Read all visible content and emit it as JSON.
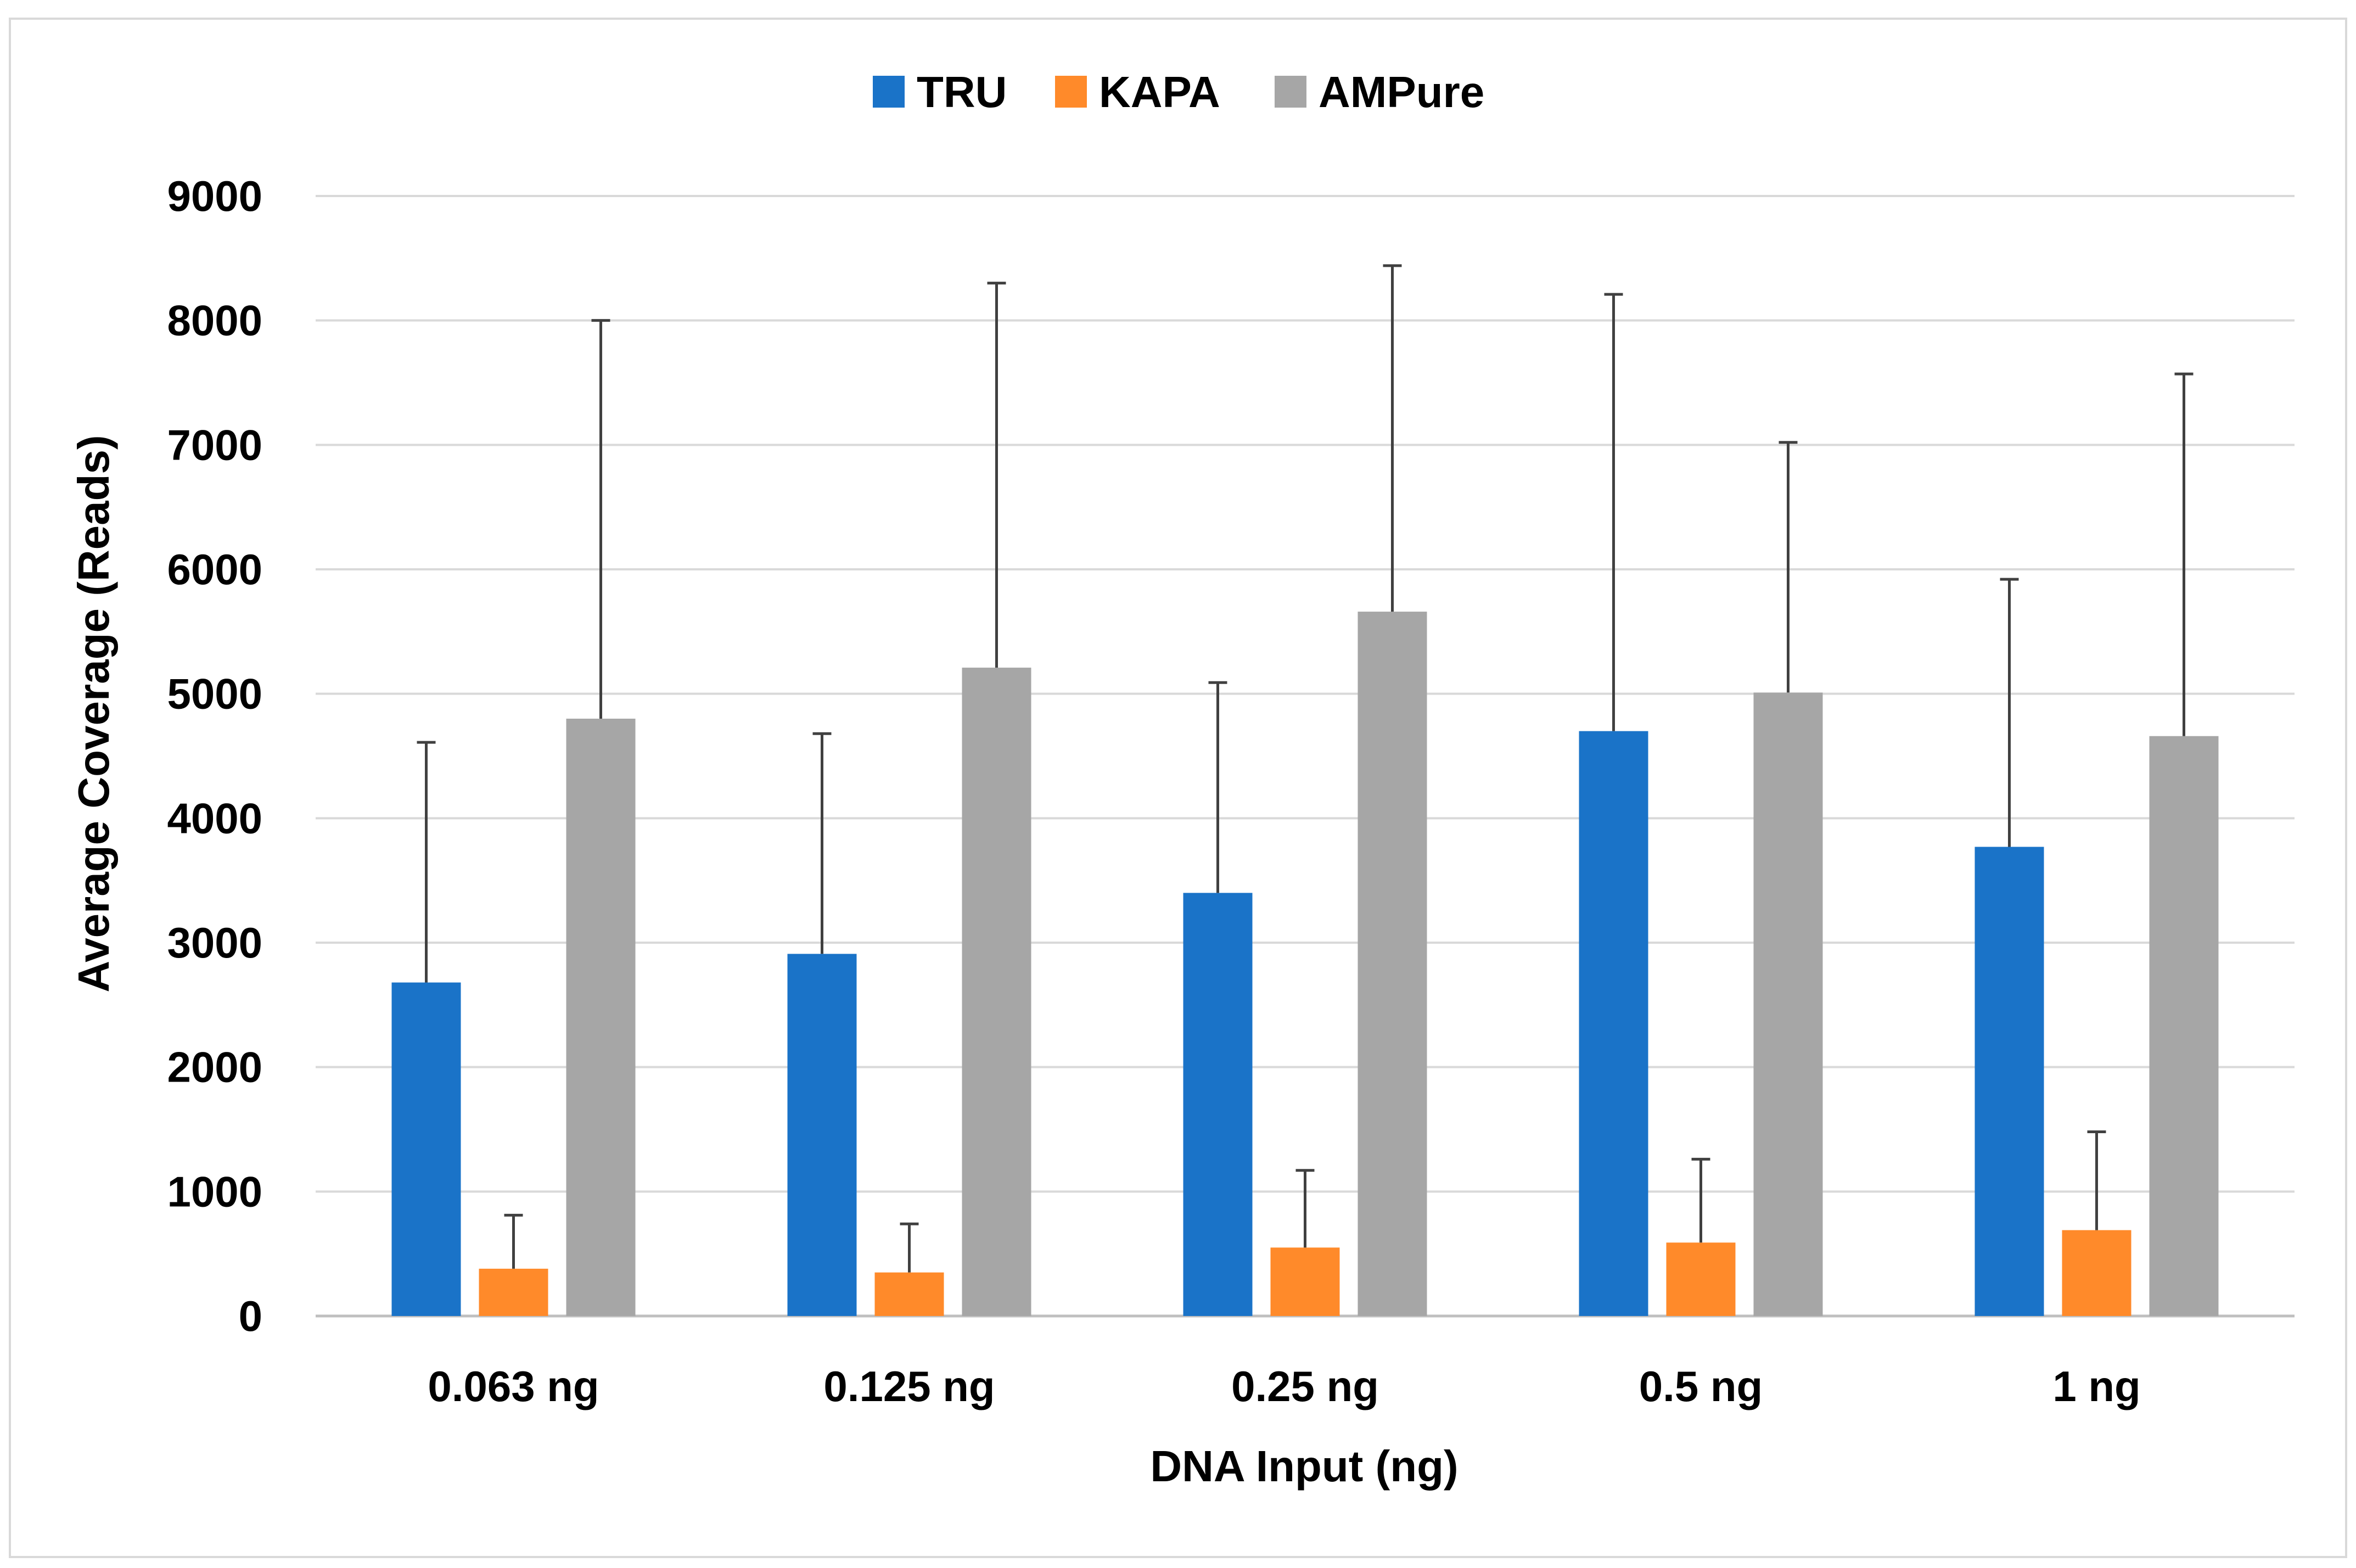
{
  "chart_data": {
    "type": "bar",
    "title": "",
    "xlabel": "DNA Input (ng)",
    "ylabel": "Average Coverage (Reads)",
    "ylim": [
      0,
      9000
    ],
    "yticks": [
      0,
      1000,
      2000,
      3000,
      4000,
      5000,
      6000,
      7000,
      8000,
      9000
    ],
    "grid": true,
    "legend_position": "top-center",
    "categories": [
      "0.063 ng",
      "0.125 ng",
      "0.25 ng",
      "0.5 ng",
      "1 ng"
    ],
    "series": [
      {
        "name": "TRU",
        "color": "#1a73c8",
        "values": [
          2680,
          2910,
          3400,
          4700,
          3770
        ],
        "error_upper": [
          4610,
          4680,
          5090,
          8210,
          5920
        ]
      },
      {
        "name": "KAPA",
        "color": "#ff8a2a",
        "values": [
          380,
          350,
          550,
          590,
          690
        ],
        "error_upper": [
          810,
          740,
          1170,
          1260,
          1480
        ]
      },
      {
        "name": "AMPure",
        "color": "#a6a6a6",
        "values": [
          4800,
          5210,
          5660,
          5010,
          4660
        ],
        "error_upper": [
          8000,
          8300,
          8440,
          7020,
          7570
        ]
      }
    ]
  }
}
